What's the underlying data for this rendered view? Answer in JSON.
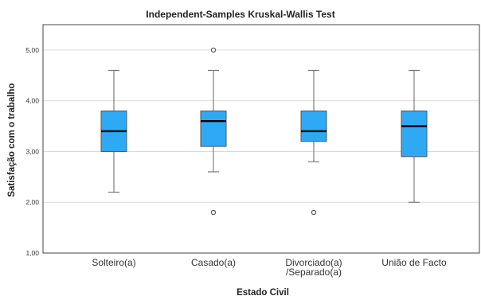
{
  "chart_data": {
    "type": "boxplot",
    "title": "Independent-Samples Kruskal-Wallis Test",
    "xlabel": "Estado Civil",
    "ylabel": "Satisfação com o trabalho",
    "ylim": [
      1.0,
      5.5
    ],
    "yticks": [
      {
        "value": 1.0,
        "label": "1,00"
      },
      {
        "value": 2.0,
        "label": "2,00"
      },
      {
        "value": 3.0,
        "label": "3,00"
      },
      {
        "value": 4.0,
        "label": "4,00"
      },
      {
        "value": 5.0,
        "label": "5,00"
      }
    ],
    "grid": true,
    "box_color": "#2eaaf5",
    "categories": [
      {
        "label_lines": [
          "Solteiro(a)"
        ],
        "min": 2.2,
        "q1": 3.0,
        "median": 3.4,
        "q3": 3.8,
        "max": 4.6,
        "outliers": []
      },
      {
        "label_lines": [
          "Casado(a)"
        ],
        "min": 2.6,
        "q1": 3.1,
        "median": 3.6,
        "q3": 3.8,
        "max": 4.6,
        "outliers": [
          1.8,
          5.0
        ]
      },
      {
        "label_lines": [
          "Divorciado(a)",
          "/Separado(a)"
        ],
        "min": 2.8,
        "q1": 3.2,
        "median": 3.4,
        "q3": 3.8,
        "max": 4.6,
        "outliers": [
          1.8
        ]
      },
      {
        "label_lines": [
          "União de Facto"
        ],
        "min": 2.0,
        "q1": 2.9,
        "median": 3.5,
        "q3": 3.8,
        "max": 4.6,
        "outliers": []
      }
    ]
  }
}
